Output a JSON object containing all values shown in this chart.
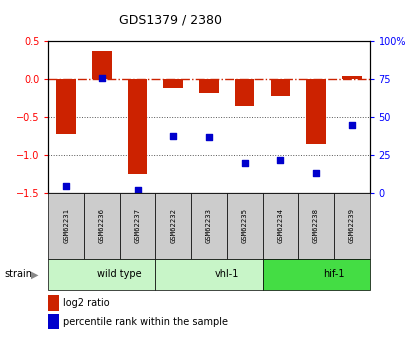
{
  "title": "GDS1379 / 2380",
  "samples": [
    "GSM62231",
    "GSM62236",
    "GSM62237",
    "GSM62232",
    "GSM62233",
    "GSM62235",
    "GSM62234",
    "GSM62238",
    "GSM62239"
  ],
  "log2_ratio": [
    -0.72,
    0.38,
    -1.25,
    -0.12,
    -0.18,
    -0.35,
    -0.22,
    -0.85,
    0.05
  ],
  "percentile_rank": [
    5,
    76,
    2,
    38,
    37,
    20,
    22,
    13,
    45
  ],
  "groups": [
    {
      "label": "wild type",
      "start": 0,
      "end": 3,
      "color": "#c8f5c8"
    },
    {
      "label": "vhl-1",
      "start": 3,
      "end": 6,
      "color": "#c8f5c8"
    },
    {
      "label": "hif-1",
      "start": 6,
      "end": 9,
      "color": "#44dd44"
    }
  ],
  "ylim_left": [
    -1.5,
    0.5
  ],
  "ylim_right": [
    0,
    100
  ],
  "bar_color": "#cc2200",
  "dot_color": "#0000cc",
  "ref_line_color": "#cc2200",
  "grid_dotted_color": "#555555",
  "sample_box_color": "#cccccc",
  "legend_items": [
    "log2 ratio",
    "percentile rank within the sample"
  ]
}
